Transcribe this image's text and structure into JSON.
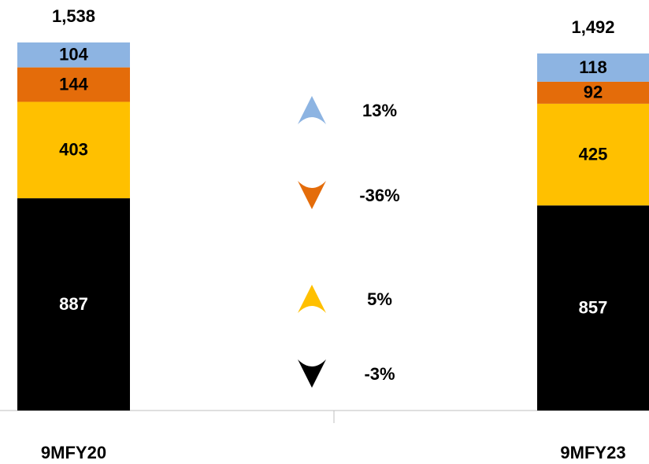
{
  "chart_data": {
    "type": "stacked-bar",
    "categories": [
      "9MFY20",
      "9MFY23"
    ],
    "series": [
      {
        "name": "Black",
        "color": "#000000",
        "values": [
          887,
          857
        ],
        "change": {
          "value": -3,
          "label": "-3%"
        }
      },
      {
        "name": "Yellow",
        "color": "#FFC000",
        "values": [
          403,
          425
        ],
        "change": {
          "value": 5,
          "label": "5%"
        }
      },
      {
        "name": "Orange",
        "color": "#E46C0A",
        "values": [
          144,
          92
        ],
        "change": {
          "value": -36,
          "label": "-36%"
        }
      },
      {
        "name": "Light Blue",
        "color": "#8DB4E2",
        "values": [
          104,
          118
        ],
        "change": {
          "value": 13,
          "label": "13%"
        }
      }
    ],
    "totals": [
      {
        "value": 1538,
        "label": "1,538"
      },
      {
        "value": 1492,
        "label": "1,492"
      }
    ],
    "ylim": [
      0,
      1538
    ]
  }
}
